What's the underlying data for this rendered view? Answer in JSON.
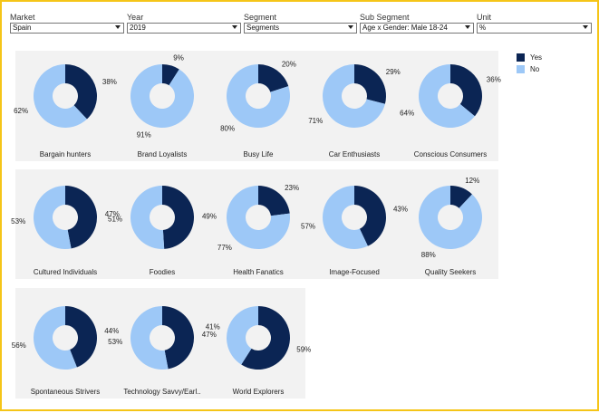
{
  "filters": [
    {
      "label": "Market",
      "value": "Spain"
    },
    {
      "label": "Year",
      "value": "2019"
    },
    {
      "label": "Segment",
      "value": "Segments"
    },
    {
      "label": "Sub Segment",
      "value": "Age x Gender: Male 18-24"
    },
    {
      "label": "Unit",
      "value": "%"
    }
  ],
  "legend": [
    {
      "label": "Yes",
      "color": "#0b2554"
    },
    {
      "label": "No",
      "color": "#9dc8f7"
    }
  ],
  "chart_data": {
    "type": "pie",
    "variant": "donut",
    "series": [
      "Yes",
      "No"
    ],
    "colors": {
      "Yes": "#0b2554",
      "No": "#9dc8f7"
    },
    "charts": [
      {
        "title": "Bargain hunters",
        "yes": 38,
        "no": 62
      },
      {
        "title": "Brand Loyalists",
        "yes": 9,
        "no": 91
      },
      {
        "title": "Busy Life",
        "yes": 20,
        "no": 80
      },
      {
        "title": "Car Enthusiasts",
        "yes": 29,
        "no": 71
      },
      {
        "title": "Conscious Consumers",
        "yes": 36,
        "no": 64
      },
      {
        "title": "Cultured Individuals",
        "yes": 47,
        "no": 53
      },
      {
        "title": "Foodies",
        "yes": 49,
        "no": 51
      },
      {
        "title": "Health Fanatics",
        "yes": 23,
        "no": 77
      },
      {
        "title": "Image-Focused",
        "yes": 43,
        "no": 57
      },
      {
        "title": "Quality Seekers",
        "yes": 12,
        "no": 88
      },
      {
        "title": "Spontaneous Strivers",
        "yes": 44,
        "no": 56
      },
      {
        "title": "Technology Savvy/Earl..",
        "yes": 47,
        "no": 53
      },
      {
        "title": "World Explorers",
        "yes": 59,
        "no": 41
      }
    ]
  }
}
